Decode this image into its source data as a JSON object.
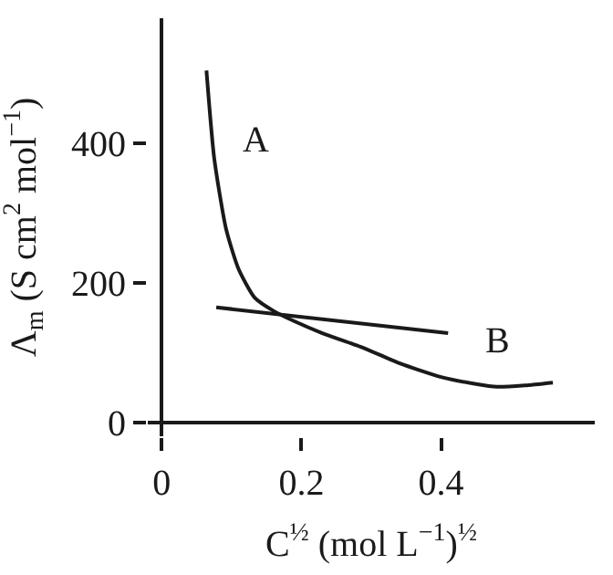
{
  "chart_data": {
    "type": "line",
    "xlabel": "C$^{½}$ (mol L$^{−1}$)$^{½}$",
    "ylabel": "Λ$_{m}$ (S cm$^{2}$ mol$^{−1}$)",
    "xlim": [
      -0.02,
      0.62
    ],
    "ylim": [
      -20,
      580
    ],
    "xticks": [
      0,
      0.2,
      0.4
    ],
    "yticks": [
      0,
      200,
      400
    ],
    "legend": false,
    "marker": "none",
    "line_style": "solid",
    "series": [
      {
        "name": "A",
        "color": "#1a1a1a",
        "x": [
          0.064,
          0.075,
          0.092,
          0.11,
          0.133,
          0.16,
          0.19,
          0.23,
          0.286,
          0.34,
          0.4,
          0.45,
          0.48,
          0.52,
          0.56
        ],
        "values": [
          505,
          380,
          278,
          220,
          179,
          160,
          145,
          128,
          108,
          85,
          65,
          55,
          51,
          53,
          57
        ]
      },
      {
        "name": "B",
        "color": "#1a1a1a",
        "x": [
          0.078,
          0.41
        ],
        "values": [
          165,
          128
        ]
      }
    ]
  }
}
